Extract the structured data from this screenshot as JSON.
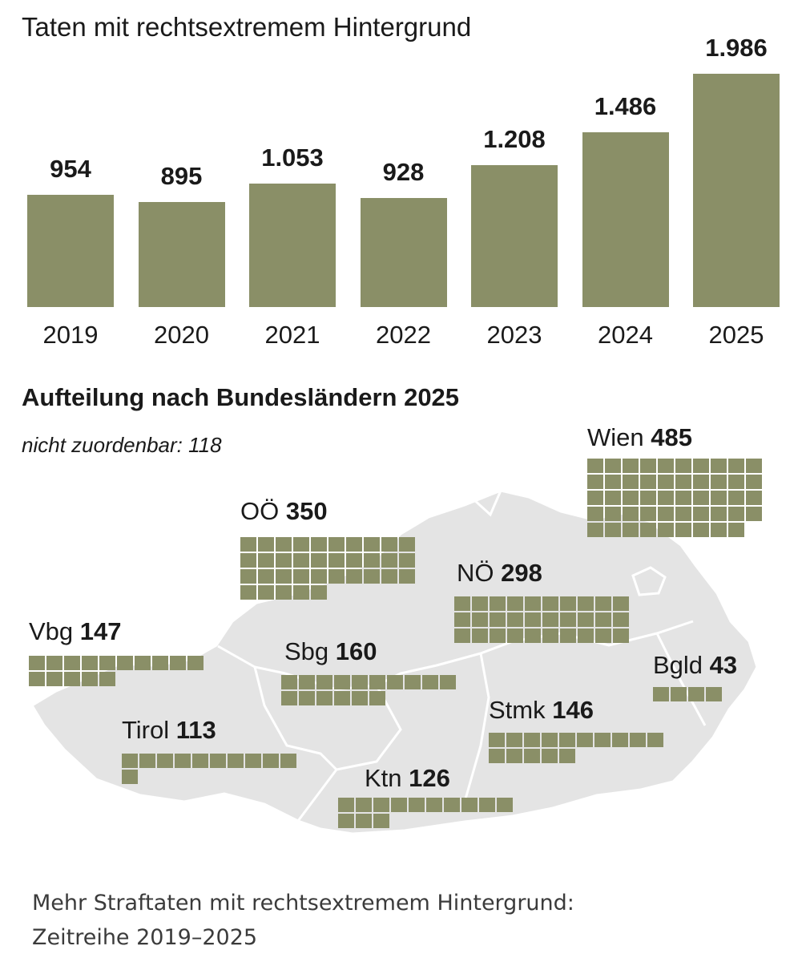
{
  "colors": {
    "bar": "#8a8f67",
    "map_land": "#e4e4e4",
    "map_border": "#ffffff",
    "text": "#1a1a1a",
    "caption_text": "#3b3b3b"
  },
  "chart_data": [
    {
      "type": "bar",
      "title": "Taten mit rechtsextremem Hintergrund",
      "categories": [
        "2019",
        "2020",
        "2021",
        "2022",
        "2023",
        "2024",
        "2025"
      ],
      "values": [
        954,
        895,
        1053,
        928,
        1208,
        1486,
        1986
      ],
      "value_labels": [
        "954",
        "895",
        "1.053",
        "928",
        "1.208",
        "1.486",
        "1.986"
      ],
      "ylim": [
        0,
        1986
      ],
      "grid": false,
      "legend": "none"
    },
    {
      "type": "map",
      "title": "Aufteilung nach Bundesländern 2025",
      "unassigned_label": "nicht zuordenbar:",
      "unassigned_value": "118",
      "unit_per_square": 10,
      "regions": [
        {
          "name": "Vbg",
          "value": 147
        },
        {
          "name": "Tirol",
          "value": 113
        },
        {
          "name": "Sbg",
          "value": 160
        },
        {
          "name": "OÖ",
          "value": 350
        },
        {
          "name": "Ktn",
          "value": 126
        },
        {
          "name": "Stmk",
          "value": 146
        },
        {
          "name": "NÖ",
          "value": 298
        },
        {
          "name": "Wien",
          "value": 485
        },
        {
          "name": "Bgld",
          "value": 43
        }
      ]
    }
  ],
  "caption": {
    "line1": "Mehr Straftaten mit rechtsextremem Hintergrund:",
    "line2": "Zeitreihe 2019–2025"
  }
}
